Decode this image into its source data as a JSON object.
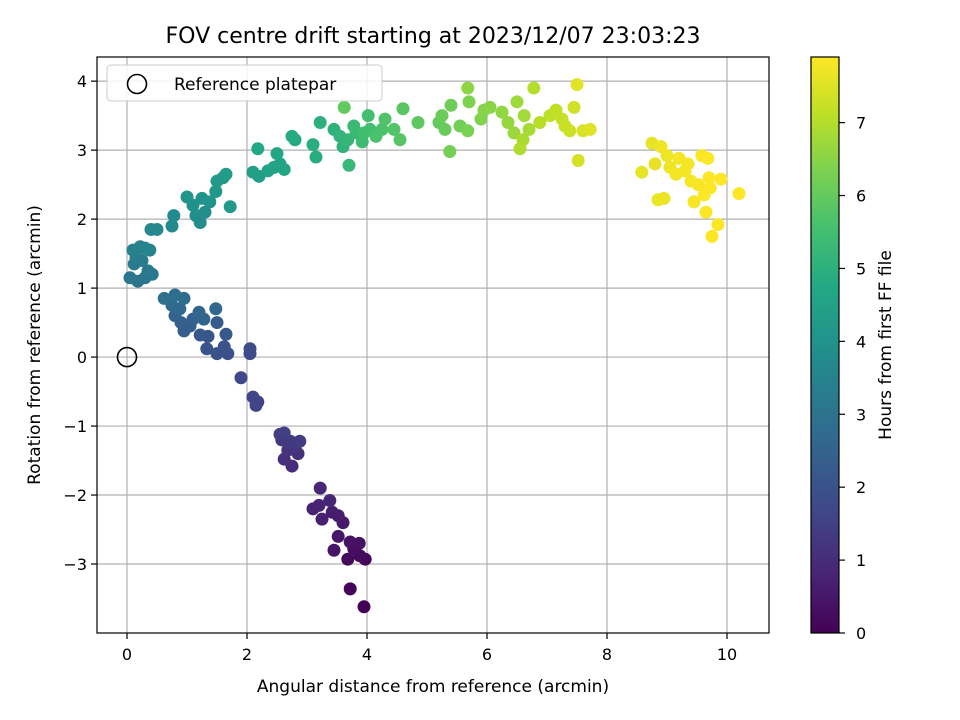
{
  "chart_data": {
    "type": "scatter",
    "title": "FOV centre drift starting at 2023/12/07 23:03:23",
    "xlabel": "Angular distance from reference (arcmin)",
    "ylabel": "Rotation from reference (arcmin)",
    "xlim": [
      -0.5,
      10.7
    ],
    "ylim": [
      -4.0,
      4.35
    ],
    "xticks": [
      0,
      2,
      4,
      6,
      8,
      10
    ],
    "yticks": [
      -3,
      -2,
      -1,
      0,
      1,
      2,
      3,
      4
    ],
    "grid": true,
    "legend": {
      "placement": "top-left",
      "entries": [
        {
          "label": "Reference platepar",
          "marker": "open-circle"
        }
      ]
    },
    "reference_point": {
      "x": 0,
      "y": 0
    },
    "colorbar": {
      "label": "Hours from first FF file",
      "range": [
        0,
        7.9
      ],
      "ticks": [
        0,
        1,
        2,
        3,
        4,
        5,
        6,
        7
      ],
      "colormap": "viridis"
    },
    "points": [
      [
        3.95,
        -3.62,
        0.05
      ],
      [
        3.72,
        -3.36,
        0.1
      ],
      [
        3.97,
        -2.93,
        0.15
      ],
      [
        3.68,
        -2.93,
        0.2
      ],
      [
        3.88,
        -2.88,
        0.25
      ],
      [
        3.78,
        -2.78,
        0.3
      ],
      [
        3.87,
        -2.7,
        0.35
      ],
      [
        3.72,
        -2.68,
        0.4
      ],
      [
        3.45,
        -2.8,
        0.45
      ],
      [
        3.52,
        -2.6,
        0.5
      ],
      [
        3.6,
        -2.4,
        0.55
      ],
      [
        3.52,
        -2.3,
        0.6
      ],
      [
        3.42,
        -2.25,
        0.65
      ],
      [
        3.25,
        -2.35,
        0.7
      ],
      [
        3.1,
        -2.2,
        0.75
      ],
      [
        3.2,
        -2.15,
        0.8
      ],
      [
        3.38,
        -2.08,
        0.85
      ],
      [
        3.22,
        -1.9,
        0.9
      ],
      [
        2.75,
        -1.58,
        1.0
      ],
      [
        2.62,
        -1.48,
        1.05
      ],
      [
        2.85,
        -1.4,
        1.1
      ],
      [
        2.68,
        -1.35,
        1.15
      ],
      [
        2.8,
        -1.3,
        1.2
      ],
      [
        2.58,
        -1.2,
        1.25
      ],
      [
        2.72,
        -1.22,
        1.3
      ],
      [
        2.88,
        -1.22,
        1.35
      ],
      [
        2.55,
        -1.12,
        1.4
      ],
      [
        2.62,
        -1.1,
        1.45
      ],
      [
        2.15,
        -0.7,
        1.55
      ],
      [
        2.18,
        -0.65,
        1.6
      ],
      [
        2.1,
        -0.58,
        1.65
      ],
      [
        1.9,
        -0.3,
        1.7
      ],
      [
        2.05,
        0.05,
        1.8
      ],
      [
        2.05,
        0.12,
        1.85
      ],
      [
        1.68,
        0.05,
        1.9
      ],
      [
        1.5,
        0.05,
        1.95
      ],
      [
        1.62,
        0.15,
        2.0
      ],
      [
        1.33,
        0.12,
        2.05
      ],
      [
        1.35,
        0.3,
        2.1
      ],
      [
        1.22,
        0.32,
        2.15
      ],
      [
        1.65,
        0.33,
        2.2
      ],
      [
        1.5,
        0.5,
        2.25
      ],
      [
        0.95,
        0.38,
        2.3
      ],
      [
        1.05,
        0.45,
        2.35
      ],
      [
        0.9,
        0.5,
        2.4
      ],
      [
        1.1,
        0.55,
        2.45
      ],
      [
        0.8,
        0.6,
        2.5
      ],
      [
        1.28,
        0.55,
        2.55
      ],
      [
        1.2,
        0.65,
        2.6
      ],
      [
        1.48,
        0.7,
        2.65
      ],
      [
        0.88,
        0.7,
        2.7
      ],
      [
        0.75,
        0.75,
        2.75
      ],
      [
        0.95,
        0.85,
        2.8
      ],
      [
        0.8,
        0.9,
        2.85
      ],
      [
        0.62,
        0.85,
        2.9
      ],
      [
        0.18,
        1.1,
        3.0
      ],
      [
        0.3,
        1.15,
        3.05
      ],
      [
        0.05,
        1.15,
        3.1
      ],
      [
        0.42,
        1.2,
        3.15
      ],
      [
        0.35,
        1.25,
        3.2
      ],
      [
        0.12,
        1.35,
        3.25
      ],
      [
        0.25,
        1.4,
        3.3
      ],
      [
        0.15,
        1.45,
        3.35
      ],
      [
        0.1,
        1.55,
        3.4
      ],
      [
        0.22,
        1.6,
        3.45
      ],
      [
        0.38,
        1.55,
        3.5
      ],
      [
        0.3,
        1.58,
        3.55
      ],
      [
        0.4,
        1.85,
        3.6
      ],
      [
        0.5,
        1.85,
        3.65
      ],
      [
        0.75,
        1.9,
        3.7
      ],
      [
        0.78,
        2.05,
        3.75
      ],
      [
        1.22,
        1.95,
        3.8
      ],
      [
        1.15,
        2.05,
        3.85
      ],
      [
        1.3,
        2.1,
        3.9
      ],
      [
        1.1,
        2.2,
        3.95
      ],
      [
        1.25,
        2.3,
        4.0
      ],
      [
        1.38,
        2.25,
        4.05
      ],
      [
        1.0,
        2.32,
        4.1
      ],
      [
        1.48,
        2.4,
        4.15
      ],
      [
        1.72,
        2.18,
        4.2
      ],
      [
        1.5,
        2.55,
        4.25
      ],
      [
        1.6,
        2.6,
        4.3
      ],
      [
        1.65,
        2.65,
        4.35
      ],
      [
        2.2,
        2.62,
        4.4
      ],
      [
        2.1,
        2.68,
        4.45
      ],
      [
        2.35,
        2.7,
        4.5
      ],
      [
        2.45,
        2.75,
        4.55
      ],
      [
        2.55,
        2.8,
        4.6
      ],
      [
        2.62,
        2.72,
        4.65
      ],
      [
        2.5,
        2.95,
        4.7
      ],
      [
        2.18,
        3.02,
        4.75
      ],
      [
        2.8,
        3.15,
        4.8
      ],
      [
        2.75,
        3.2,
        4.85
      ],
      [
        3.15,
        2.9,
        4.9
      ],
      [
        3.1,
        3.08,
        4.95
      ],
      [
        3.22,
        3.4,
        5.0
      ],
      [
        3.45,
        3.3,
        5.05
      ],
      [
        3.6,
        3.05,
        5.1
      ],
      [
        3.55,
        3.2,
        5.15
      ],
      [
        3.68,
        3.15,
        5.2
      ],
      [
        3.7,
        2.78,
        5.25
      ],
      [
        3.82,
        3.25,
        5.3
      ],
      [
        3.78,
        3.35,
        5.35
      ],
      [
        3.92,
        3.12,
        5.4
      ],
      [
        3.95,
        3.25,
        5.45
      ],
      [
        4.05,
        3.3,
        5.5
      ],
      [
        4.02,
        3.5,
        5.55
      ],
      [
        4.15,
        3.2,
        5.6
      ],
      [
        4.25,
        3.3,
        5.65
      ],
      [
        4.3,
        3.45,
        5.7
      ],
      [
        4.45,
        3.3,
        5.75
      ],
      [
        4.55,
        3.15,
        5.8
      ],
      [
        4.6,
        3.6,
        5.85
      ],
      [
        4.85,
        3.4,
        5.9
      ],
      [
        3.62,
        3.62,
        5.95
      ],
      [
        5.2,
        3.4,
        6.0
      ],
      [
        5.3,
        3.3,
        6.05
      ],
      [
        5.25,
        3.5,
        6.1
      ],
      [
        5.4,
        3.65,
        6.15
      ],
      [
        5.55,
        3.35,
        6.2
      ],
      [
        5.38,
        2.98,
        6.25
      ],
      [
        5.68,
        3.28,
        6.3
      ],
      [
        5.7,
        3.7,
        6.35
      ],
      [
        5.9,
        3.45,
        6.4
      ],
      [
        5.95,
        3.58,
        6.45
      ],
      [
        6.05,
        3.62,
        6.5
      ],
      [
        5.68,
        3.9,
        6.55
      ],
      [
        6.25,
        3.55,
        6.6
      ],
      [
        6.35,
        3.4,
        6.65
      ],
      [
        6.45,
        3.25,
        6.7
      ],
      [
        6.5,
        3.7,
        6.75
      ],
      [
        6.62,
        3.5,
        6.8
      ],
      [
        6.7,
        3.3,
        6.85
      ],
      [
        6.6,
        3.15,
        6.9
      ],
      [
        6.55,
        3.02,
        6.95
      ],
      [
        6.78,
        3.9,
        7.0
      ],
      [
        6.88,
        3.4,
        7.05
      ],
      [
        7.05,
        3.5,
        7.1
      ],
      [
        7.15,
        3.58,
        7.15
      ],
      [
        7.25,
        3.45,
        7.2
      ],
      [
        7.3,
        3.35,
        7.25
      ],
      [
        7.38,
        3.28,
        7.3
      ],
      [
        7.45,
        3.62,
        7.35
      ],
      [
        7.52,
        2.85,
        7.4
      ],
      [
        7.6,
        3.28,
        7.45
      ],
      [
        7.72,
        3.3,
        7.5
      ],
      [
        7.5,
        3.95,
        7.55
      ],
      [
        8.58,
        2.68,
        7.6
      ],
      [
        8.75,
        3.1,
        7.62
      ],
      [
        8.8,
        2.8,
        7.64
      ],
      [
        8.85,
        2.28,
        7.66
      ],
      [
        8.95,
        2.3,
        7.68
      ],
      [
        8.9,
        3.05,
        7.7
      ],
      [
        9.0,
        2.92,
        7.72
      ],
      [
        9.05,
        2.75,
        7.74
      ],
      [
        9.15,
        2.65,
        7.76
      ],
      [
        9.2,
        2.88,
        7.78
      ],
      [
        9.3,
        2.7,
        7.8
      ],
      [
        9.35,
        2.8,
        7.81
      ],
      [
        9.4,
        2.55,
        7.82
      ],
      [
        9.45,
        2.25,
        7.83
      ],
      [
        9.52,
        2.5,
        7.84
      ],
      [
        9.58,
        2.92,
        7.85
      ],
      [
        9.62,
        2.35,
        7.86
      ],
      [
        9.65,
        2.1,
        7.87
      ],
      [
        9.7,
        2.6,
        7.88
      ],
      [
        9.75,
        1.75,
        7.89
      ],
      [
        9.85,
        1.92,
        7.9
      ],
      [
        9.9,
        2.58,
        7.9
      ],
      [
        10.2,
        2.37,
        7.9
      ],
      [
        9.68,
        2.88,
        7.88
      ],
      [
        9.72,
        2.45,
        7.89
      ]
    ]
  }
}
